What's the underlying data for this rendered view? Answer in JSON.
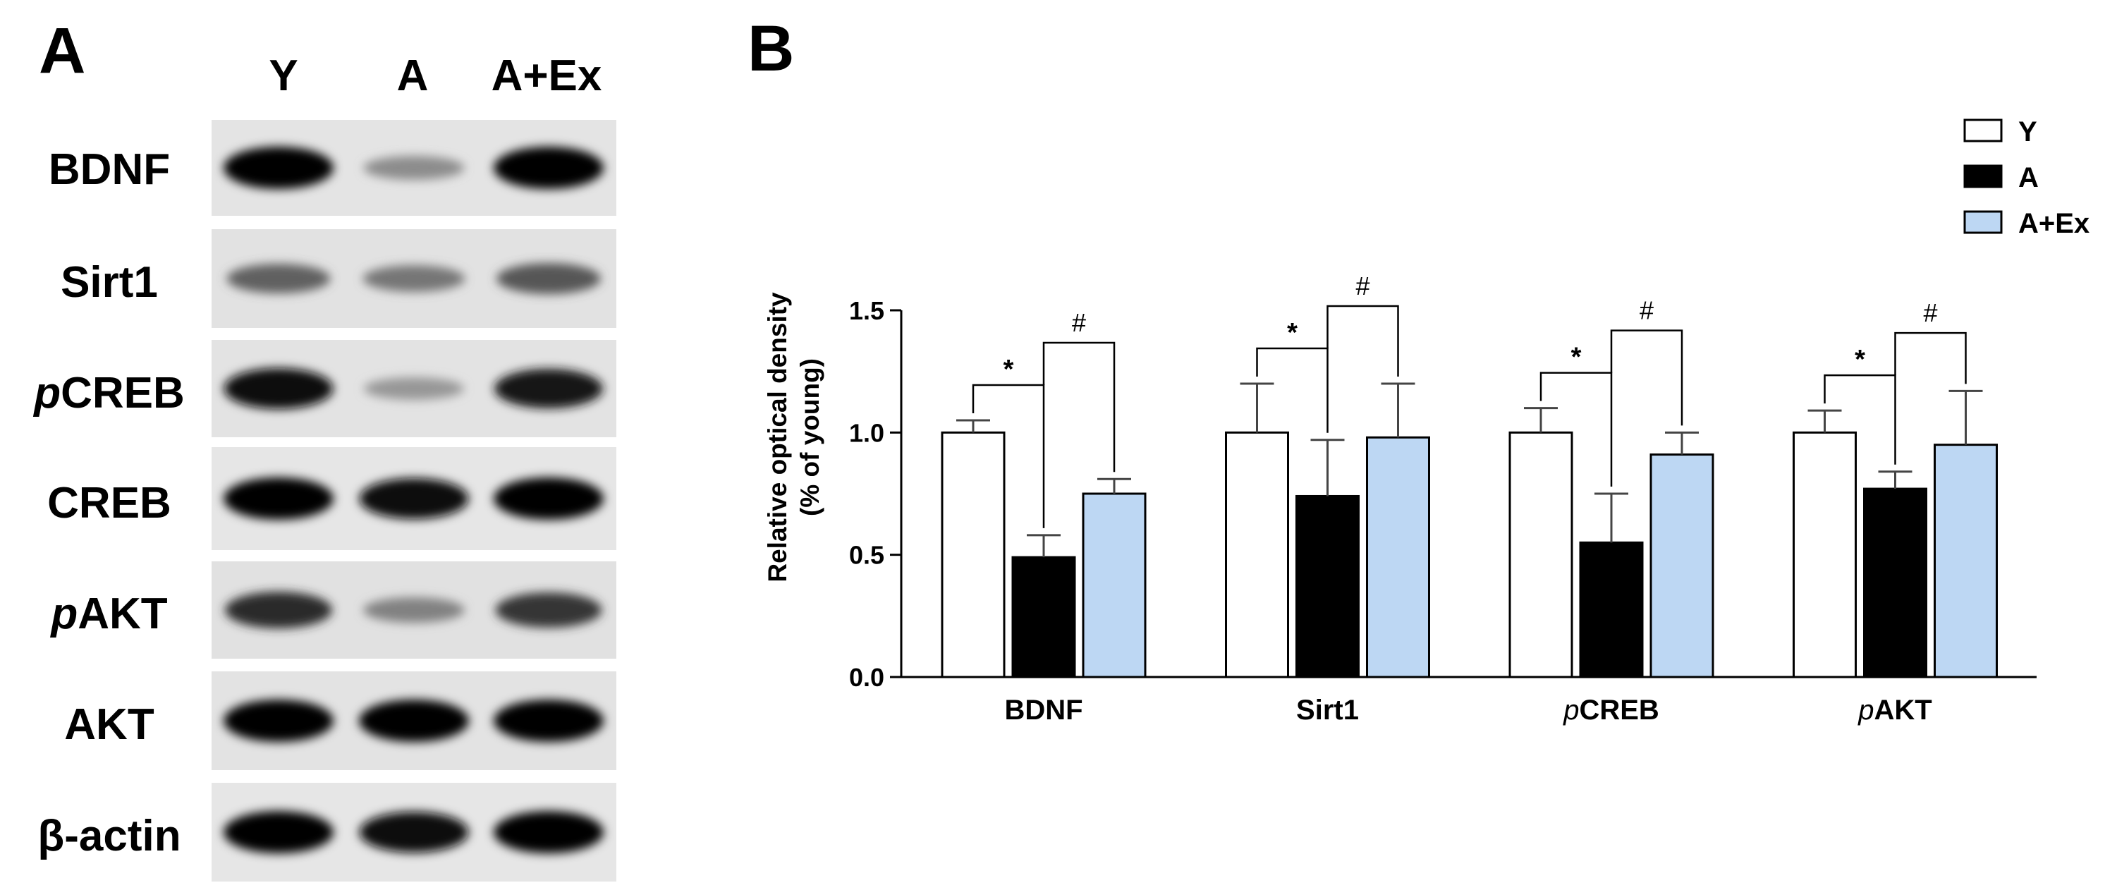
{
  "panel_a": {
    "letter": "A",
    "lanes": [
      "Y",
      "A",
      "A+Ex"
    ],
    "rows": [
      {
        "label": "BDNF",
        "prefix": ""
      },
      {
        "label": "Sirt1",
        "prefix": ""
      },
      {
        "label": "CREB",
        "prefix": "p"
      },
      {
        "label": "CREB",
        "prefix": ""
      },
      {
        "label": "AKT",
        "prefix": "p"
      },
      {
        "label": "AKT",
        "prefix": ""
      },
      {
        "label": "β-actin",
        "prefix": ""
      }
    ],
    "band_intensity": [
      [
        1.0,
        0.35,
        1.0
      ],
      [
        0.55,
        0.45,
        0.6
      ],
      [
        0.95,
        0.3,
        0.9
      ],
      [
        1.0,
        0.95,
        1.0
      ],
      [
        0.8,
        0.4,
        0.75
      ],
      [
        1.0,
        1.0,
        1.0
      ],
      [
        1.0,
        0.95,
        1.0
      ]
    ]
  },
  "chart_data": {
    "type": "bar",
    "panel_letter": "B",
    "title": "",
    "xlabel": "",
    "ylabel_line1": "Relative optical density",
    "ylabel_line2": "(% of young)",
    "ylim": [
      0,
      1.5
    ],
    "yticks": [
      "0.0",
      "0.5",
      "1.0",
      "1.5"
    ],
    "categories": [
      {
        "prefix": "",
        "label": "BDNF"
      },
      {
        "prefix": "",
        "label": "Sirt1"
      },
      {
        "prefix": "p",
        "label": "CREB"
      },
      {
        "prefix": "p",
        "label": "AKT"
      }
    ],
    "series": [
      {
        "name": "Y",
        "color": "#ffffff",
        "values": [
          1.0,
          1.0,
          1.0,
          1.0
        ],
        "errors": [
          0.05,
          0.2,
          0.1,
          0.09
        ]
      },
      {
        "name": "A",
        "color": "#000000",
        "values": [
          0.49,
          0.74,
          0.55,
          0.77
        ],
        "errors": [
          0.09,
          0.23,
          0.2,
          0.07
        ]
      },
      {
        "name": "A+Ex",
        "color": "#bdd7f3",
        "values": [
          0.75,
          0.98,
          0.91,
          0.95
        ],
        "errors": [
          0.06,
          0.22,
          0.09,
          0.22
        ]
      }
    ],
    "significance": [
      {
        "star": "*",
        "hash": "#"
      },
      {
        "star": "*",
        "hash": "#"
      },
      {
        "star": "*",
        "hash": "#"
      },
      {
        "star": "*",
        "hash": "#"
      }
    ],
    "legend": {
      "position": "top-right",
      "entries": [
        "Y",
        "A",
        "A+Ex"
      ]
    }
  }
}
